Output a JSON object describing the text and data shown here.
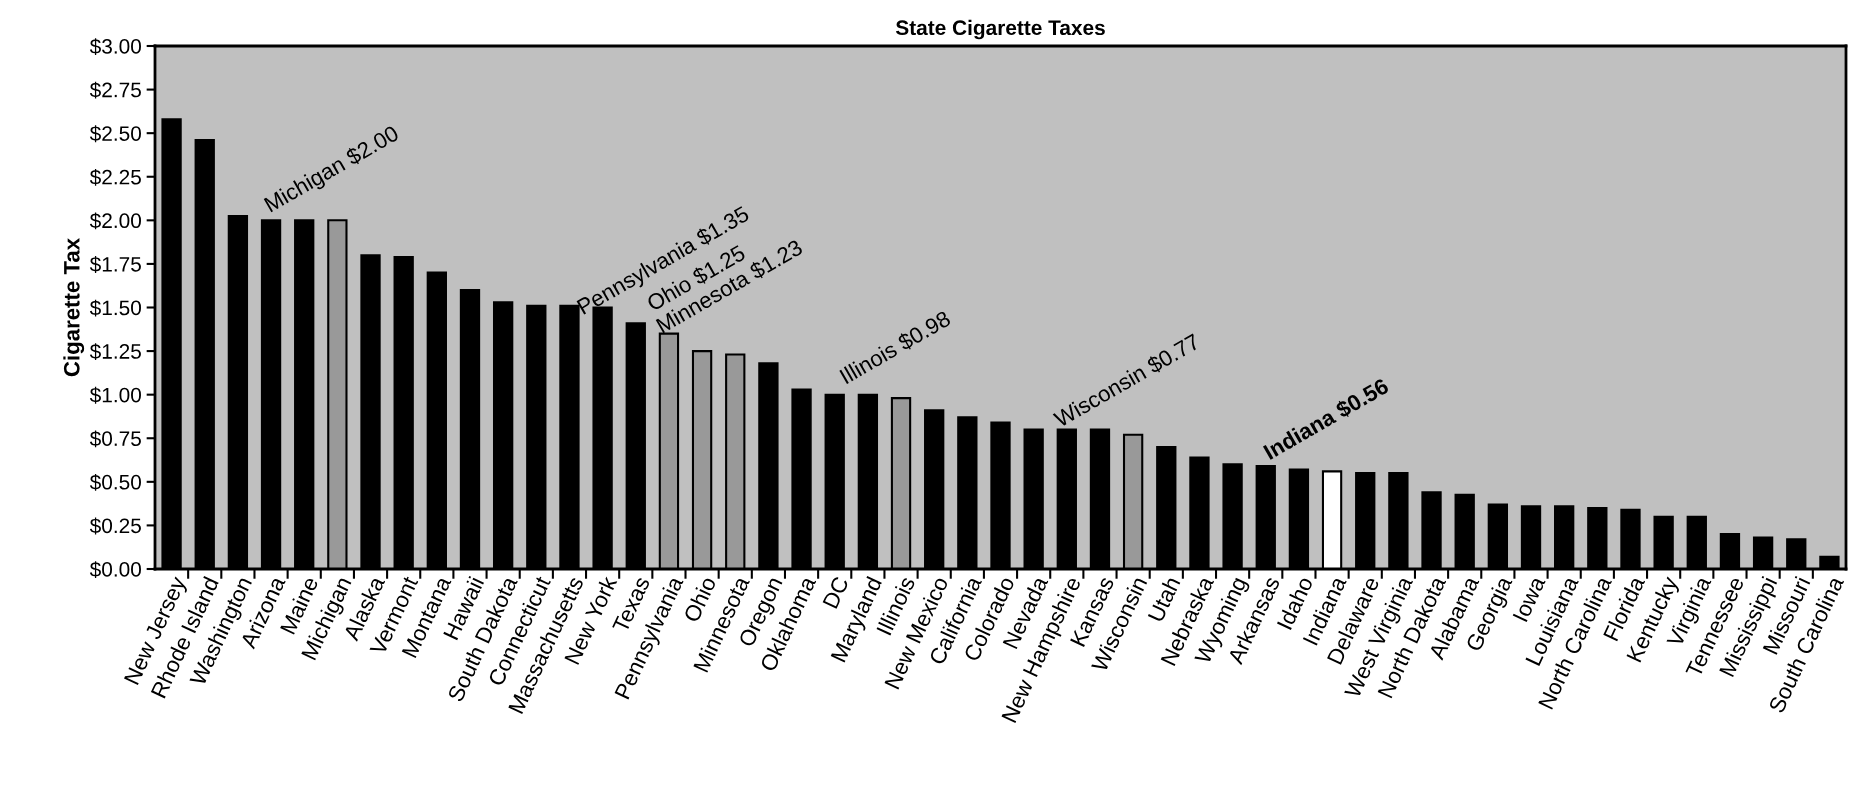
{
  "chart_data": {
    "type": "bar",
    "title": "State Cigarette Taxes",
    "ylabel": "Cigarette Tax",
    "categories": [
      "New Jersey",
      "Rhode Island",
      "Washington",
      "Arizona",
      "Maine",
      "Michigan",
      "Alaska",
      "Vermont",
      "Montana",
      "Hawaii",
      "South Dakota",
      "Connecticut",
      "Massachusetts",
      "New York",
      "Texas",
      "Pennsylvania",
      "Ohio",
      "Minnesota",
      "Oregon",
      "Oklahoma",
      "DC",
      "Maryland",
      "Illinois",
      "New Mexico",
      "California",
      "Colorado",
      "Nevada",
      "New Hampshire",
      "Kansas",
      "Wisconsin",
      "Utah",
      "Nebraska",
      "Wyoming",
      "Arkansas",
      "Idaho",
      "Indiana",
      "Delaware",
      "West Virginia",
      "North Dakota",
      "Alabama",
      "Georgia",
      "Iowa",
      "Louisiana",
      "North Carolina",
      "Florida",
      "Kentucky",
      "Virginia",
      "Tennessee",
      "Mississippi",
      "Missouri",
      "South Carolina"
    ],
    "values": [
      2.58,
      2.46,
      2.025,
      2.0,
      2.0,
      2.0,
      1.8,
      1.79,
      1.7,
      1.6,
      1.53,
      1.51,
      1.51,
      1.5,
      1.41,
      1.35,
      1.25,
      1.23,
      1.18,
      1.03,
      1.0,
      1.0,
      0.98,
      0.91,
      0.87,
      0.84,
      0.8,
      0.8,
      0.8,
      0.77,
      0.7,
      0.64,
      0.6,
      0.59,
      0.57,
      0.56,
      0.55,
      0.55,
      0.44,
      0.425,
      0.37,
      0.36,
      0.36,
      0.35,
      0.34,
      0.3,
      0.3,
      0.2,
      0.18,
      0.17,
      0.07
    ],
    "colors": [
      "#000000",
      "#000000",
      "#000000",
      "#000000",
      "#000000",
      "#999999",
      "#000000",
      "#000000",
      "#000000",
      "#000000",
      "#000000",
      "#000000",
      "#000000",
      "#000000",
      "#000000",
      "#999999",
      "#999999",
      "#999999",
      "#000000",
      "#000000",
      "#000000",
      "#000000",
      "#999999",
      "#000000",
      "#000000",
      "#000000",
      "#000000",
      "#000000",
      "#000000",
      "#999999",
      "#000000",
      "#000000",
      "#000000",
      "#000000",
      "#000000",
      "#ffffff",
      "#000000",
      "#000000",
      "#000000",
      "#000000",
      "#000000",
      "#000000",
      "#000000",
      "#000000",
      "#000000",
      "#000000",
      "#000000",
      "#000000",
      "#000000",
      "#000000",
      "#000000"
    ],
    "ylim": [
      0,
      3
    ],
    "yticks": [
      {
        "value": 0,
        "label": "$0.00"
      },
      {
        "value": 0.25,
        "label": "$0.25"
      },
      {
        "value": 0.5,
        "label": "$0.50"
      },
      {
        "value": 0.75,
        "label": "$0.75"
      },
      {
        "value": 1,
        "label": "$1.00"
      },
      {
        "value": 1.25,
        "label": "$1.25"
      },
      {
        "value": 1.5,
        "label": "$1.50"
      },
      {
        "value": 1.75,
        "label": "$1.75"
      },
      {
        "value": 2,
        "label": "$2.00"
      },
      {
        "value": 2.25,
        "label": "$2.25"
      },
      {
        "value": 2.5,
        "label": "$2.50"
      },
      {
        "value": 2.75,
        "label": "$2.75"
      },
      {
        "value": 3,
        "label": "$3.00"
      }
    ],
    "value_labels": [
      null,
      null,
      null,
      null,
      null,
      "Michigan $2.00",
      null,
      null,
      null,
      null,
      null,
      null,
      null,
      null,
      null,
      "Pennsylvania $1.35",
      "Ohio $1.25",
      "Minnesota $1.23",
      null,
      null,
      null,
      null,
      "Illinois $0.98",
      null,
      null,
      null,
      null,
      null,
      null,
      "Wisconsin $0.77",
      null,
      null,
      null,
      null,
      null,
      "Indiana $0.56",
      null,
      null,
      null,
      null,
      null,
      null,
      null,
      null,
      null,
      null,
      null,
      null,
      null,
      null,
      null
    ],
    "grid": false
  }
}
